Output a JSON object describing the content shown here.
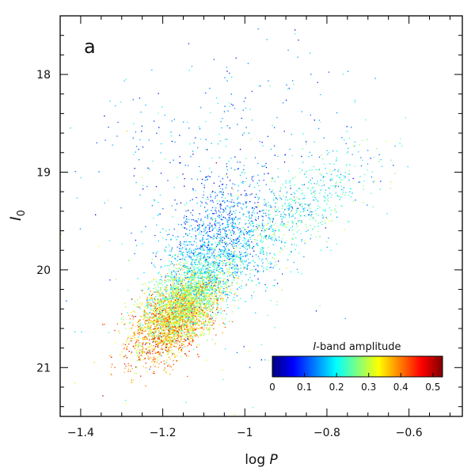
{
  "chart_data": {
    "type": "scatter",
    "panel_label": "a",
    "xlabel_prefix": "log ",
    "xlabel_var": "P",
    "ylabel_var": "I",
    "ylabel_sub": "0",
    "xlim": [
      -1.45,
      -0.47
    ],
    "ylim": [
      21.5,
      17.4
    ],
    "y_inverted": true,
    "x_major_ticks": [
      -1.4,
      -1.2,
      -1.0,
      -0.8,
      -0.6
    ],
    "x_tick_labels": [
      "−1.4",
      "−1.2",
      "−1",
      "−0.8",
      "−0.6"
    ],
    "x_minor_step": 0.05,
    "y_major_ticks": [
      18,
      19,
      20,
      21
    ],
    "y_tick_labels": [
      "18",
      "19",
      "20",
      "21"
    ],
    "y_minor_step": 0.2,
    "grid": false,
    "colorbar": {
      "title_var": "I",
      "title_rest": "-band amplitude",
      "range": [
        0,
        0.53
      ],
      "ticks": [
        0,
        0.1,
        0.2,
        0.3,
        0.4,
        0.5
      ],
      "tick_labels": [
        "0",
        "0.1",
        "0.2",
        "0.3",
        "0.4",
        "0.5"
      ],
      "colormap": [
        "#00007f",
        "#0000ff",
        "#007fff",
        "#00ffff",
        "#7fff7f",
        "#ffff00",
        "#ff7f00",
        "#ff0000",
        "#7f0000"
      ],
      "placement": "bottom-right"
    },
    "point_groups": [
      {
        "name": "",
        "n": 3800,
        "x_mean": -1.16,
        "y_mean": 20.42,
        "sx": 0.055,
        "sy": 0.24,
        "rho": -0.55,
        "amp_mean": 0.32,
        "amp_sd": 0.07,
        "amp_slope_y": 0.14
      },
      {
        "name": "",
        "n": 1300,
        "x_mean": -1.07,
        "y_mean": 19.75,
        "sx": 0.065,
        "sy": 0.32,
        "rho": -0.3,
        "amp_mean": 0.16,
        "amp_sd": 0.05,
        "amp_slope_y": 0.08
      },
      {
        "name": "",
        "n": 700,
        "x_mean": -0.88,
        "y_mean": 19.4,
        "sx": 0.1,
        "sy": 0.35,
        "rho": -0.7,
        "amp_mean": 0.21,
        "amp_sd": 0.05,
        "amp_slope_y": 0.0
      },
      {
        "name": "",
        "n": 320,
        "x_mean": -1.05,
        "y_mean": 18.8,
        "sx": 0.16,
        "sy": 0.55,
        "rho": -0.1,
        "amp_mean": 0.14,
        "amp_sd": 0.05,
        "amp_slope_y": 0.0
      },
      {
        "name": "",
        "n": 110,
        "x_mean": -1.1,
        "y_mean": 19.9,
        "sx": 0.17,
        "sy": 0.8,
        "rho": 0.0,
        "amp_mean": 0.2,
        "amp_sd": 0.1,
        "amp_slope_y": 0.0
      }
    ]
  }
}
